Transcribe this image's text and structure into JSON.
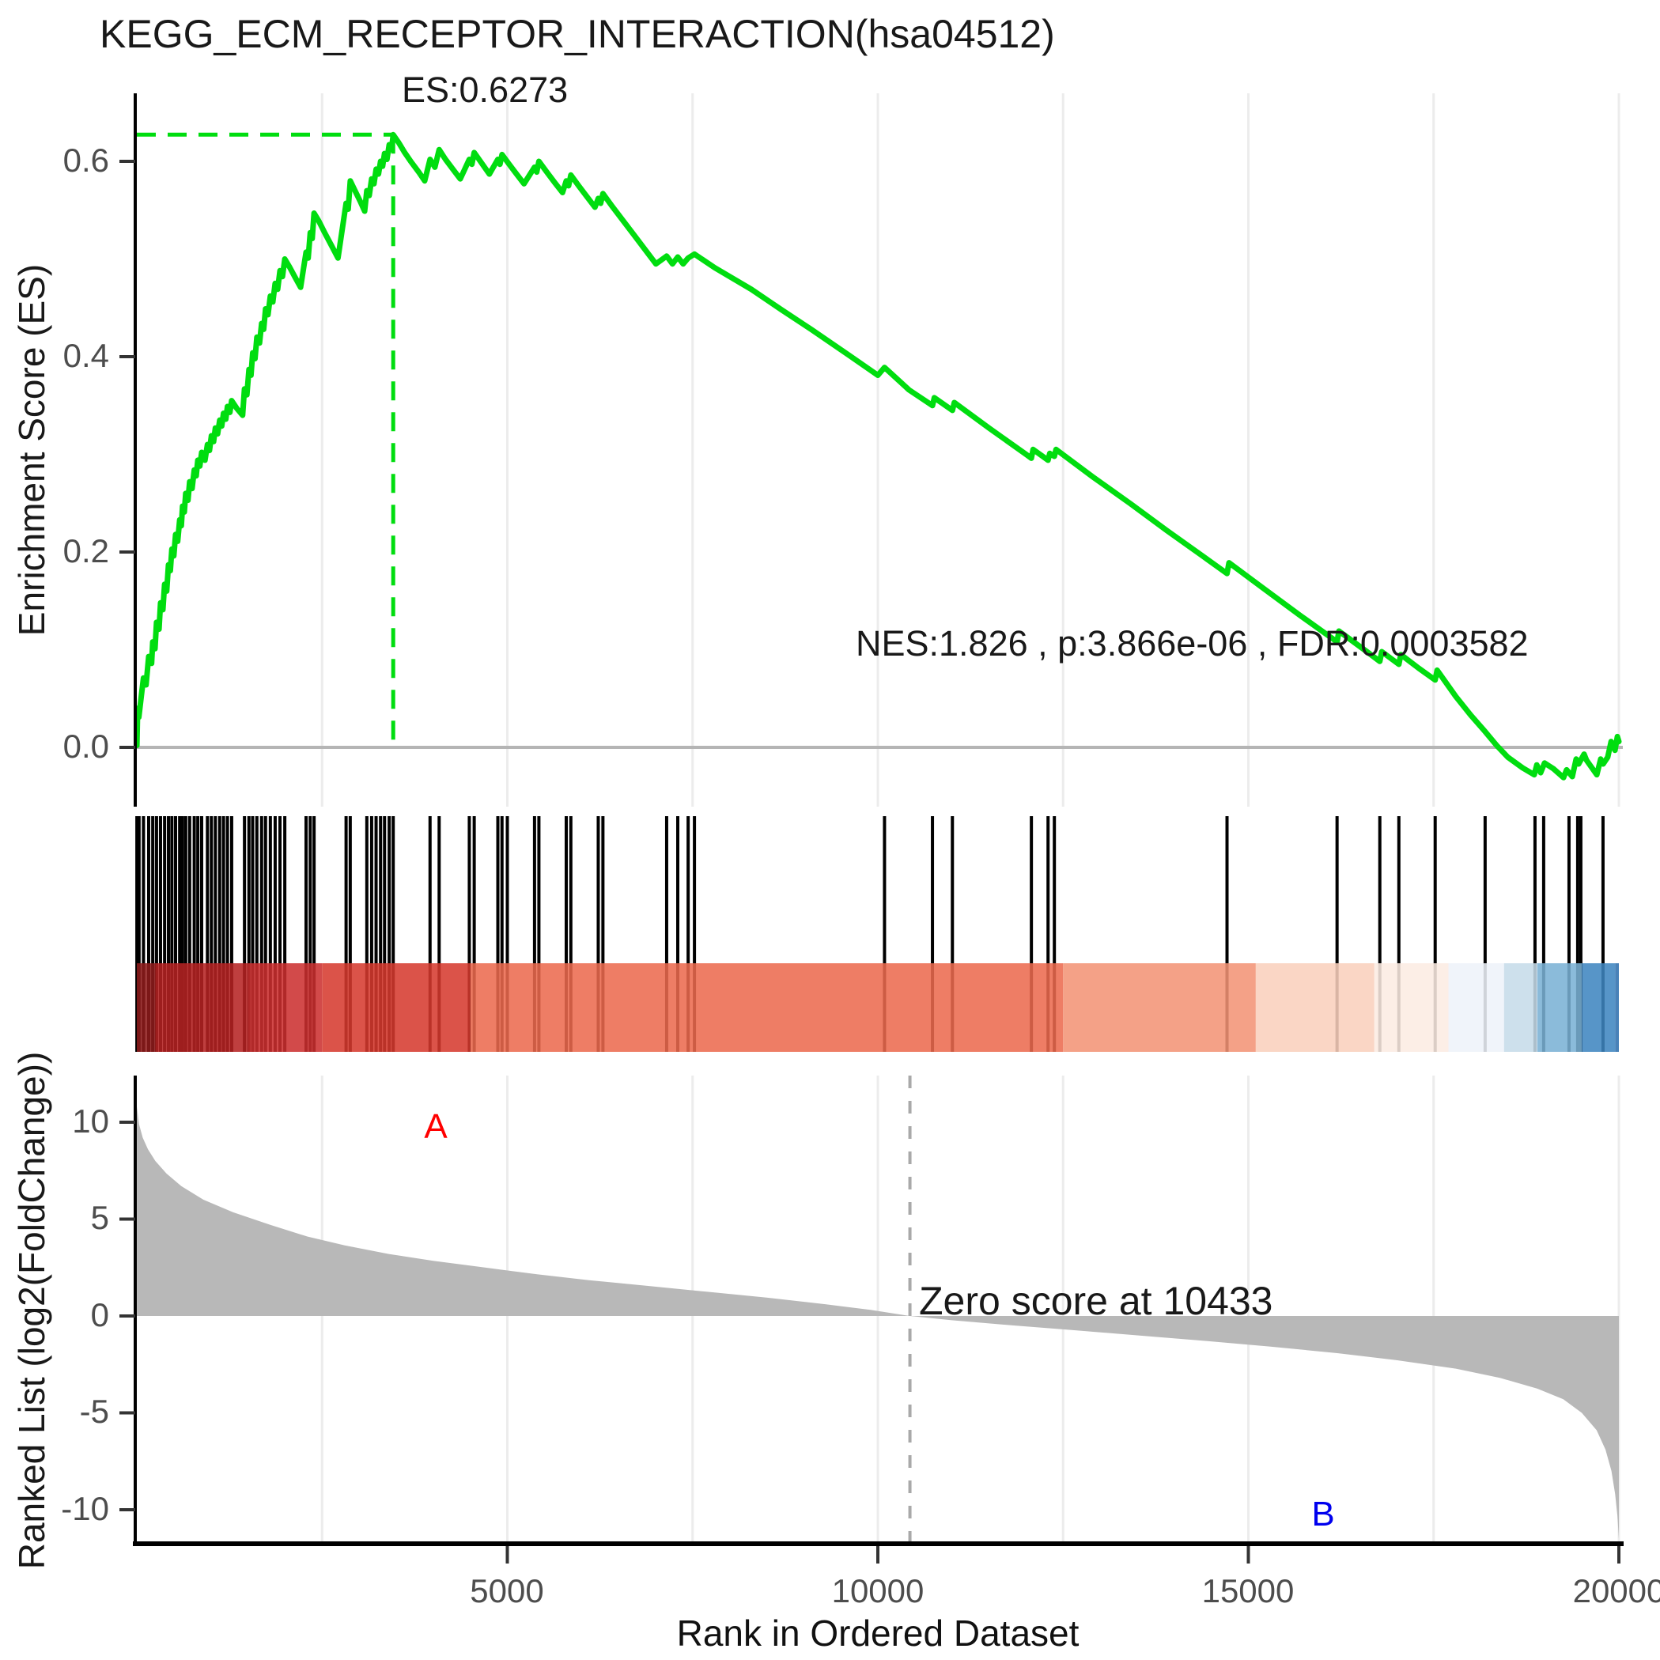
{
  "title": "KEGG_ECM_RECEPTOR_INTERACTION(hsa04512)",
  "chart_data": {
    "type": "line",
    "subtype": "gsea-enrichment-plot",
    "x_axis": {
      "label": "Rank in Ordered Dataset",
      "ticks": [
        "5000",
        "10000",
        "15000",
        "20000"
      ],
      "tick_values": [
        5000,
        10000,
        15000,
        20000
      ],
      "xlim": [
        0,
        20000
      ],
      "gridline_step": 2500,
      "gridline_color": "#ececec"
    },
    "es_panel": {
      "ylabel": "Enrichment Score (ES)",
      "ytick_labels": [
        "0.6",
        "0.4",
        "0.2",
        "0.0"
      ],
      "ytick_values": [
        0.6,
        0.4,
        0.2,
        0.0
      ],
      "ylim": [
        -0.061,
        0.672
      ],
      "es_annotation": "ES:0.6273",
      "stats_annotation": "NES:1.826 , p:3.866e-06 , FDR:0.0003582",
      "peak": {
        "rank": 3460,
        "es": 0.6273
      },
      "line_color": "#00DD0F",
      "zero_line_color": "#b5b5b5",
      "curve": [
        [
          1,
          0.002
        ],
        [
          12,
          0.04
        ],
        [
          28,
          0.031
        ],
        [
          60,
          0.052
        ],
        [
          90,
          0.071
        ],
        [
          125,
          0.064
        ],
        [
          160,
          0.093
        ],
        [
          200,
          0.086
        ],
        [
          215,
          0.108
        ],
        [
          245,
          0.101
        ],
        [
          266,
          0.128
        ],
        [
          300,
          0.121
        ],
        [
          320,
          0.148
        ],
        [
          352,
          0.141
        ],
        [
          375,
          0.167
        ],
        [
          403,
          0.16
        ],
        [
          427,
          0.187
        ],
        [
          452,
          0.181
        ],
        [
          473,
          0.203
        ],
        [
          500,
          0.196
        ],
        [
          523,
          0.218
        ],
        [
          552,
          0.211
        ],
        [
          578,
          0.233
        ],
        [
          601,
          0.227
        ],
        [
          617,
          0.247
        ],
        [
          641,
          0.241
        ],
        [
          660,
          0.26
        ],
        [
          690,
          0.253
        ],
        [
          713,
          0.272
        ],
        [
          746,
          0.265
        ],
        [
          775,
          0.284
        ],
        [
          801,
          0.278
        ],
        [
          823,
          0.294
        ],
        [
          851,
          0.288
        ],
        [
          875,
          0.302
        ],
        [
          920,
          0.294
        ],
        [
          953,
          0.31
        ],
        [
          981,
          0.304
        ],
        [
          1006,
          0.319
        ],
        [
          1036,
          0.313
        ],
        [
          1060,
          0.327
        ],
        [
          1091,
          0.321
        ],
        [
          1118,
          0.335
        ],
        [
          1146,
          0.329
        ],
        [
          1170,
          0.342
        ],
        [
          1201,
          0.336
        ],
        [
          1223,
          0.349
        ],
        [
          1256,
          0.343
        ],
        [
          1280,
          0.355
        ],
        [
          1350,
          0.347
        ],
        [
          1428,
          0.34
        ],
        [
          1453,
          0.367
        ],
        [
          1486,
          0.361
        ],
        [
          1513,
          0.387
        ],
        [
          1541,
          0.381
        ],
        [
          1563,
          0.404
        ],
        [
          1596,
          0.398
        ],
        [
          1620,
          0.42
        ],
        [
          1656,
          0.414
        ],
        [
          1684,
          0.434
        ],
        [
          1712,
          0.428
        ],
        [
          1737,
          0.449
        ],
        [
          1771,
          0.443
        ],
        [
          1802,
          0.462
        ],
        [
          1836,
          0.456
        ],
        [
          1867,
          0.475
        ],
        [
          1901,
          0.469
        ],
        [
          1932,
          0.488
        ],
        [
          1966,
          0.482
        ],
        [
          1997,
          0.5
        ],
        [
          2060,
          0.492
        ],
        [
          2130,
          0.482
        ],
        [
          2210,
          0.471
        ],
        [
          2284,
          0.507
        ],
        [
          2313,
          0.501
        ],
        [
          2340,
          0.527
        ],
        [
          2367,
          0.521
        ],
        [
          2392,
          0.547
        ],
        [
          2455,
          0.539
        ],
        [
          2535,
          0.527
        ],
        [
          2625,
          0.514
        ],
        [
          2715,
          0.501
        ],
        [
          2824,
          0.557
        ],
        [
          2853,
          0.551
        ],
        [
          2880,
          0.58
        ],
        [
          2945,
          0.57
        ],
        [
          3015,
          0.559
        ],
        [
          3075,
          0.549
        ],
        [
          3104,
          0.57
        ],
        [
          3137,
          0.565
        ],
        [
          3169,
          0.582
        ],
        [
          3201,
          0.577
        ],
        [
          3229,
          0.592
        ],
        [
          3261,
          0.587
        ],
        [
          3289,
          0.6
        ],
        [
          3317,
          0.595
        ],
        [
          3343,
          0.608
        ],
        [
          3376,
          0.602
        ],
        [
          3406,
          0.617
        ],
        [
          3437,
          0.612
        ],
        [
          3460,
          0.6273
        ],
        [
          3535,
          0.619
        ],
        [
          3615,
          0.609
        ],
        [
          3705,
          0.599
        ],
        [
          3805,
          0.589
        ],
        [
          3885,
          0.58
        ],
        [
          3957,
          0.602
        ],
        [
          4022,
          0.594
        ],
        [
          4080,
          0.612
        ],
        [
          4165,
          0.602
        ],
        [
          4265,
          0.592
        ],
        [
          4365,
          0.582
        ],
        [
          4487,
          0.602
        ],
        [
          4522,
          0.597
        ],
        [
          4553,
          0.609
        ],
        [
          4655,
          0.598
        ],
        [
          4758,
          0.587
        ],
        [
          4872,
          0.602
        ],
        [
          4901,
          0.597
        ],
        [
          4928,
          0.607
        ],
        [
          5025,
          0.597
        ],
        [
          5125,
          0.587
        ],
        [
          5225,
          0.577
        ],
        [
          5367,
          0.594
        ],
        [
          5397,
          0.589
        ],
        [
          5426,
          0.6
        ],
        [
          5533,
          0.589
        ],
        [
          5643,
          0.578
        ],
        [
          5745,
          0.568
        ],
        [
          5795,
          0.58
        ],
        [
          5827,
          0.575
        ],
        [
          5857,
          0.586
        ],
        [
          5963,
          0.575
        ],
        [
          6073,
          0.564
        ],
        [
          6183,
          0.553
        ],
        [
          6227,
          0.562
        ],
        [
          6259,
          0.557
        ],
        [
          6290,
          0.567
        ],
        [
          6405,
          0.555
        ],
        [
          6555,
          0.54
        ],
        [
          6705,
          0.525
        ],
        [
          6855,
          0.51
        ],
        [
          7005,
          0.495
        ],
        [
          7150,
          0.503
        ],
        [
          7228,
          0.495
        ],
        [
          7300,
          0.502
        ],
        [
          7372,
          0.495
        ],
        [
          7440,
          0.501
        ],
        [
          7525,
          0.505
        ],
        [
          7800,
          0.491
        ],
        [
          8292,
          0.469
        ],
        [
          8700,
          0.448
        ],
        [
          9100,
          0.428
        ],
        [
          9600,
          0.402
        ],
        [
          10000,
          0.381
        ],
        [
          10090,
          0.389
        ],
        [
          10420,
          0.366
        ],
        [
          10737,
          0.35
        ],
        [
          10762,
          0.358
        ],
        [
          11006,
          0.345
        ],
        [
          11032,
          0.353
        ],
        [
          11500,
          0.327
        ],
        [
          12000,
          0.3
        ],
        [
          12072,
          0.296
        ],
        [
          12095,
          0.305
        ],
        [
          12297,
          0.294
        ],
        [
          12320,
          0.301
        ],
        [
          12382,
          0.298
        ],
        [
          12405,
          0.305
        ],
        [
          12900,
          0.277
        ],
        [
          13400,
          0.25
        ],
        [
          13900,
          0.222
        ],
        [
          14400,
          0.195
        ],
        [
          14712,
          0.178
        ],
        [
          14738,
          0.189
        ],
        [
          15200,
          0.163
        ],
        [
          15700,
          0.135
        ],
        [
          16197,
          0.108
        ],
        [
          16222,
          0.119
        ],
        [
          16600,
          0.098
        ],
        [
          16774,
          0.088
        ],
        [
          16800,
          0.098
        ],
        [
          17031,
          0.085
        ],
        [
          17058,
          0.095
        ],
        [
          17300,
          0.081
        ],
        [
          17521,
          0.069
        ],
        [
          17548,
          0.079
        ],
        [
          17800,
          0.052
        ],
        [
          18000,
          0.033
        ],
        [
          18196,
          0.016
        ],
        [
          18350,
          0.002
        ],
        [
          18500,
          -0.01
        ],
        [
          18700,
          -0.021
        ],
        [
          18858,
          -0.028
        ],
        [
          18892,
          -0.018
        ],
        [
          18944,
          -0.026
        ],
        [
          18997,
          -0.016
        ],
        [
          19120,
          -0.022
        ],
        [
          19253,
          -0.031
        ],
        [
          19295,
          -0.023
        ],
        [
          19371,
          -0.03
        ],
        [
          19424,
          -0.012
        ],
        [
          19457,
          -0.017
        ],
        [
          19530,
          -0.007
        ],
        [
          19562,
          -0.013
        ],
        [
          19702,
          -0.028
        ],
        [
          19755,
          -0.012
        ],
        [
          19788,
          -0.017
        ],
        [
          19850,
          -0.01
        ],
        [
          19895,
          0.006
        ],
        [
          19948,
          -0.003
        ],
        [
          19980,
          0.011
        ],
        [
          20000,
          0.006
        ]
      ]
    },
    "hits_panel": {
      "tick_color": "#000000",
      "hit_ranks": [
        1,
        30,
        90,
        160,
        215,
        266,
        320,
        375,
        427,
        473,
        523,
        578,
        617,
        660,
        713,
        775,
        823,
        875,
        953,
        1006,
        1060,
        1118,
        1170,
        1223,
        1280,
        1453,
        1513,
        1563,
        1620,
        1684,
        1737,
        1802,
        1867,
        1932,
        1997,
        2284,
        2340,
        2392,
        2824,
        2880,
        3104,
        3169,
        3229,
        3289,
        3343,
        3406,
        3460,
        3957,
        4080,
        4487,
        4553,
        4872,
        4928,
        5000,
        5367,
        5426,
        5795,
        5857,
        6227,
        6290,
        7150,
        7300,
        7440,
        7525,
        10090,
        10737,
        11006,
        12072,
        12297,
        12382,
        14712,
        16197,
        16774,
        17031,
        17521,
        18195,
        18868,
        18985,
        19327,
        19444,
        19487,
        19786
      ],
      "colorbar": {
        "opacity": 0.87,
        "boundaries": [
          0,
          250,
          1500,
          2500,
          4500,
          12500,
          15100,
          16700,
          17700,
          18450,
          18900,
          19500,
          19950,
          20000
        ],
        "colors": [
          "#8e1b1b",
          "#b52222",
          "#cb2f2f",
          "#d63a2e",
          "#ec6a4e",
          "#f29375",
          "#f9d0bc",
          "#fcebe2",
          "#eef2f9",
          "#c6dbe9",
          "#7ab1d4",
          "#3e85c0",
          "#2e6fad"
        ]
      }
    },
    "rank_panel": {
      "ylabel": "Ranked List (log2(FoldChange))",
      "ytick_labels": [
        "10",
        "5",
        "0",
        "-5",
        "-10"
      ],
      "ytick_values": [
        10,
        5,
        0,
        -5,
        -10
      ],
      "ylim": [
        -11.7,
        12.4
      ],
      "area_color": "#b8b8b8",
      "dashed_line_color": "#a9a9a9",
      "zero_cross": {
        "label": "Zero score at 10433",
        "rank": 10433
      },
      "group_a": {
        "label": "A",
        "color": "#FF0000",
        "rank": 4030,
        "value": 9.6
      },
      "group_b": {
        "label": "B",
        "color": "#0000EE",
        "rank": 16000,
        "value": -10.3
      },
      "area": [
        [
          1,
          10.8
        ],
        [
          30,
          9.9
        ],
        [
          80,
          9.2
        ],
        [
          150,
          8.6
        ],
        [
          250,
          8.0
        ],
        [
          400,
          7.35
        ],
        [
          600,
          6.7
        ],
        [
          900,
          6.0
        ],
        [
          1300,
          5.35
        ],
        [
          1800,
          4.7
        ],
        [
          2300,
          4.1
        ],
        [
          2800,
          3.65
        ],
        [
          3400,
          3.2
        ],
        [
          4000,
          2.85
        ],
        [
          4700,
          2.5
        ],
        [
          5400,
          2.15
        ],
        [
          6100,
          1.85
        ],
        [
          6900,
          1.55
        ],
        [
          7700,
          1.25
        ],
        [
          8500,
          0.95
        ],
        [
          9300,
          0.6
        ],
        [
          9900,
          0.32
        ],
        [
          10433,
          0.0
        ],
        [
          11000,
          -0.22
        ],
        [
          11800,
          -0.48
        ],
        [
          12600,
          -0.72
        ],
        [
          13500,
          -1.0
        ],
        [
          14400,
          -1.28
        ],
        [
          15300,
          -1.58
        ],
        [
          16200,
          -1.92
        ],
        [
          17000,
          -2.28
        ],
        [
          17800,
          -2.72
        ],
        [
          18400,
          -3.2
        ],
        [
          18900,
          -3.75
        ],
        [
          19250,
          -4.3
        ],
        [
          19500,
          -5.0
        ],
        [
          19700,
          -5.9
        ],
        [
          19820,
          -6.9
        ],
        [
          19900,
          -8.0
        ],
        [
          19950,
          -9.2
        ],
        [
          19980,
          -10.3
        ],
        [
          20000,
          -11.5
        ]
      ]
    }
  }
}
